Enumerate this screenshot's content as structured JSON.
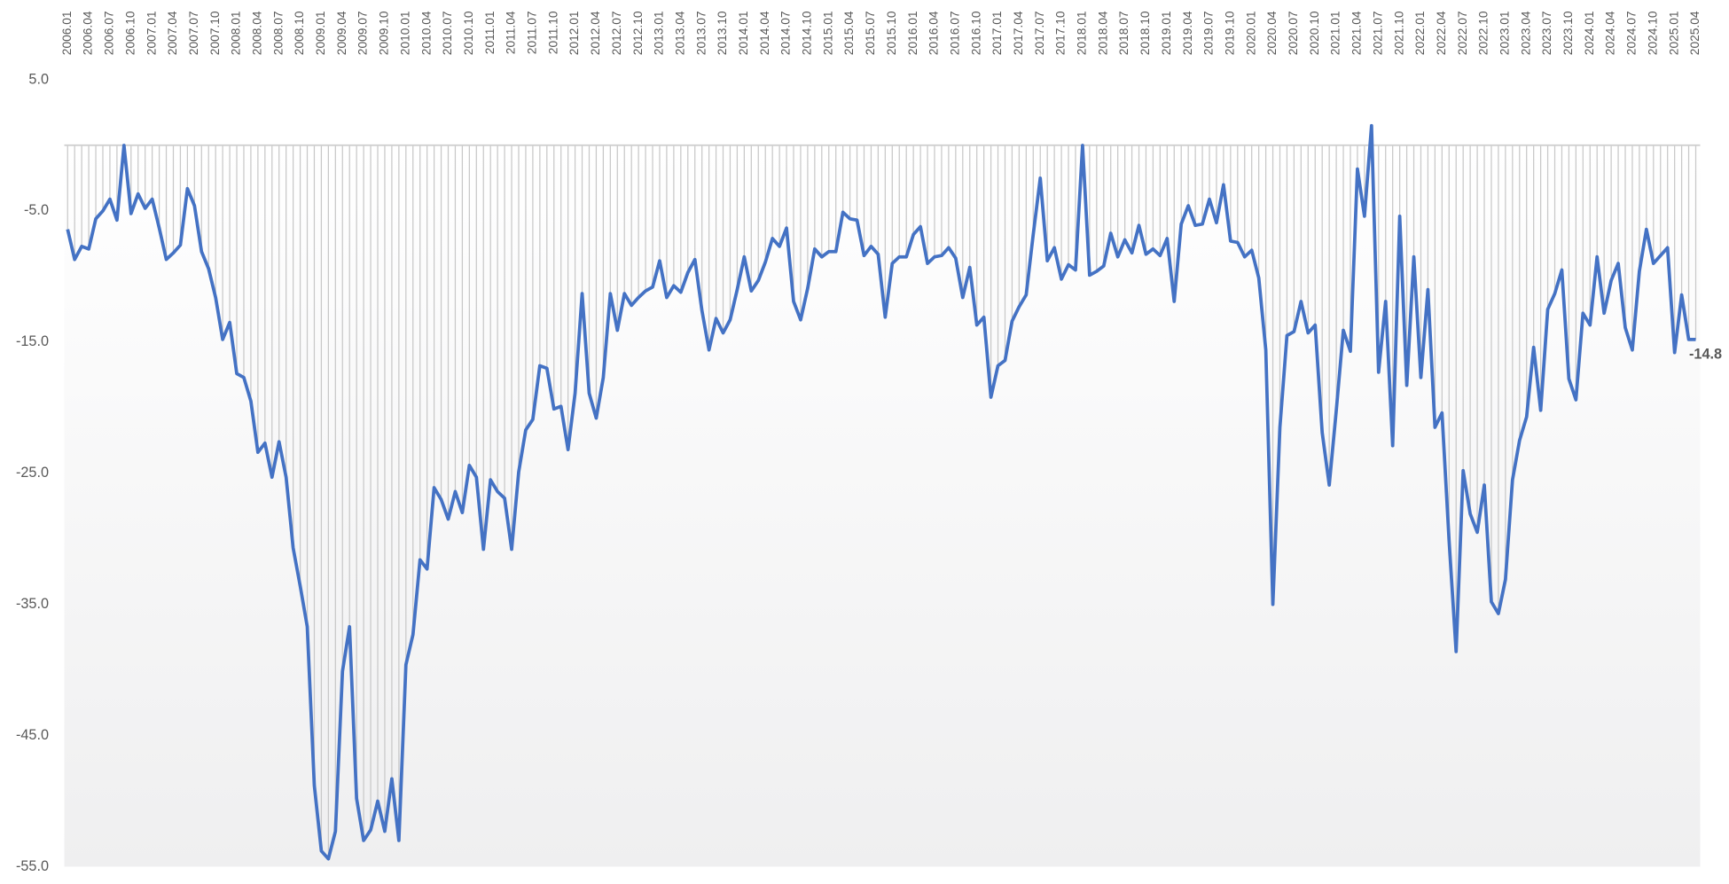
{
  "chart_data": {
    "type": "line",
    "categories": [
      "2006.01",
      null,
      null,
      "2006.04",
      null,
      null,
      "2006.07",
      null,
      null,
      "2006.10",
      null,
      null,
      "2007.01",
      null,
      null,
      "2007.04",
      null,
      null,
      "2007.07",
      null,
      null,
      "2007.10",
      null,
      null,
      "2008.01",
      null,
      null,
      "2008.04",
      null,
      null,
      "2008.07",
      null,
      null,
      "2008.10",
      null,
      null,
      "2009.01",
      null,
      null,
      "2009.04",
      null,
      null,
      "2009.07",
      null,
      null,
      "2009.10",
      null,
      null,
      "2010.01",
      null,
      null,
      "2010.04",
      null,
      null,
      "2010.07",
      null,
      null,
      "2010.10",
      null,
      null,
      "2011.01",
      null,
      null,
      "2011.04",
      null,
      null,
      "2011.07",
      null,
      null,
      "2011.10",
      null,
      null,
      "2012.01",
      null,
      null,
      "2012.04",
      null,
      null,
      "2012.07",
      null,
      null,
      "2012.10",
      null,
      null,
      "2013.01",
      null,
      null,
      "2013.04",
      null,
      null,
      "2013.07",
      null,
      null,
      "2013.10",
      null,
      null,
      "2014.01",
      null,
      null,
      "2014.04",
      null,
      null,
      "2014.07",
      null,
      null,
      "2014.10",
      null,
      null,
      "2015.01",
      null,
      null,
      "2015.04",
      null,
      null,
      "2015.07",
      null,
      null,
      "2015.10",
      null,
      null,
      "2016.01",
      null,
      null,
      "2016.04",
      null,
      null,
      "2016.07",
      null,
      null,
      "2016.10",
      null,
      null,
      "2017.01",
      null,
      null,
      "2017.04",
      null,
      null,
      "2017.07",
      null,
      null,
      "2017.10",
      null,
      null,
      "2018.01",
      null,
      null,
      "2018.04",
      null,
      null,
      "2018.07",
      null,
      null,
      "2018.10",
      null,
      null,
      "2019.01",
      null,
      null,
      "2019.04",
      null,
      null,
      "2019.07",
      null,
      null,
      "2019.10",
      null,
      null,
      "2020.01",
      null,
      null,
      "2020.04",
      null,
      null,
      "2020.07",
      null,
      null,
      "2020.10",
      null,
      null,
      "2021.01",
      null,
      null,
      "2021.04",
      null,
      null,
      "2021.07",
      null,
      null,
      "2021.10",
      null,
      null,
      "2022.01",
      null,
      null,
      "2022.04",
      null,
      null,
      "2022.07",
      null,
      null,
      "2022.10",
      null,
      null,
      "2023.01",
      null,
      null,
      "2023.04",
      null,
      null,
      "2023.07",
      null,
      null,
      "2023.10",
      null,
      null,
      "2024.01",
      null,
      null,
      "2024.04",
      null,
      null,
      "2024.07",
      null,
      null,
      "2024.10",
      null,
      null,
      "2025.01",
      null,
      null,
      "2025.04"
    ],
    "values": [
      -6.4,
      -8.7,
      -7.7,
      -7.9,
      -5.6,
      -5.0,
      -4.1,
      -5.7,
      0.0,
      -5.2,
      -3.7,
      -4.8,
      -4.1,
      -6.3,
      -8.7,
      -8.2,
      -7.6,
      -3.3,
      -4.6,
      -8.1,
      -9.4,
      -11.6,
      -14.8,
      -13.5,
      -17.4,
      -17.7,
      -19.5,
      -23.4,
      -22.7,
      -25.3,
      -22.6,
      -25.3,
      -30.7,
      -33.6,
      -36.7,
      -48.8,
      -53.8,
      -54.4,
      -52.3,
      -40.1,
      -36.7,
      -49.8,
      -53.0,
      -52.2,
      -50.0,
      -52.3,
      -48.3,
      -53.0,
      -39.6,
      -37.3,
      -31.6,
      -32.3,
      -26.1,
      -27.0,
      -28.5,
      -26.4,
      -28.0,
      -24.4,
      -25.3,
      -30.8,
      -25.5,
      -26.4,
      -26.9,
      -30.8,
      -24.9,
      -21.7,
      -20.9,
      -16.8,
      -17.0,
      -20.1,
      -19.9,
      -23.2,
      -18.9,
      -11.3,
      -18.9,
      -20.8,
      -17.7,
      -11.3,
      -14.1,
      -11.3,
      -12.2,
      -11.6,
      -11.1,
      -10.8,
      -8.8,
      -11.6,
      -10.7,
      -11.2,
      -9.7,
      -8.7,
      -12.6,
      -15.6,
      -13.2,
      -14.3,
      -13.3,
      -11.0,
      -8.5,
      -11.1,
      -10.3,
      -8.9,
      -7.1,
      -7.7,
      -6.3,
      -11.9,
      -13.3,
      -10.9,
      -7.9,
      -8.5,
      -8.1,
      -8.1,
      -5.1,
      -5.6,
      -5.7,
      -8.4,
      -7.7,
      -8.3,
      -13.1,
      -9.0,
      -8.5,
      -8.5,
      -6.8,
      -6.2,
      -9.0,
      -8.5,
      -8.4,
      -7.8,
      -8.6,
      -11.6,
      -9.3,
      -13.7,
      -13.1,
      -19.2,
      -16.8,
      -16.4,
      -13.4,
      -12.3,
      -11.4,
      -6.8,
      -2.5,
      -8.8,
      -7.8,
      -10.2,
      -9.1,
      -9.5,
      0.0,
      -9.9,
      -9.6,
      -9.2,
      -6.7,
      -8.5,
      -7.2,
      -8.2,
      -6.1,
      -8.3,
      -7.9,
      -8.4,
      -7.1,
      -11.9,
      -6.0,
      -4.6,
      -6.1,
      -6.0,
      -4.1,
      -5.9,
      -3.0,
      -7.3,
      -7.4,
      -8.5,
      -8.0,
      -10.1,
      -15.6,
      -35.0,
      -21.5,
      -14.5,
      -14.2,
      -11.9,
      -14.3,
      -13.7,
      -21.9,
      -25.9,
      -20.2,
      -14.1,
      -15.7,
      -1.8,
      -5.4,
      1.5,
      -17.3,
      -11.9,
      -22.9,
      -5.4,
      -18.3,
      -8.5,
      -17.7,
      -11.0,
      -21.5,
      -20.4,
      -30.1,
      -38.6,
      -24.8,
      -28.1,
      -29.5,
      -25.9,
      -34.8,
      -35.7,
      -33.1,
      -25.5,
      -22.5,
      -20.7,
      -15.4,
      -20.2,
      -12.5,
      -11.3,
      -9.5,
      -17.8,
      -19.4,
      -12.8,
      -13.7,
      -8.5,
      -12.8,
      -10.3,
      -9.0,
      -13.9,
      -15.6,
      -9.6,
      -6.4,
      -9.0,
      -8.4,
      -7.8,
      -15.8,
      -11.4,
      -14.8,
      -14.8
    ],
    "color": "#4472c4",
    "ylim": [
      -55,
      5
    ],
    "yticks": [
      {
        "value": 5,
        "label": "5.0"
      },
      {
        "value": -5,
        "label": "-5.0"
      },
      {
        "value": -15,
        "label": "-15.0"
      },
      {
        "value": -25,
        "label": "-25.0"
      },
      {
        "value": -35,
        "label": "-35.0"
      },
      {
        "value": -45,
        "label": "-45.0"
      },
      {
        "value": -55,
        "label": "-55.0"
      }
    ],
    "drop_lines": true,
    "last_value_label": true
  }
}
